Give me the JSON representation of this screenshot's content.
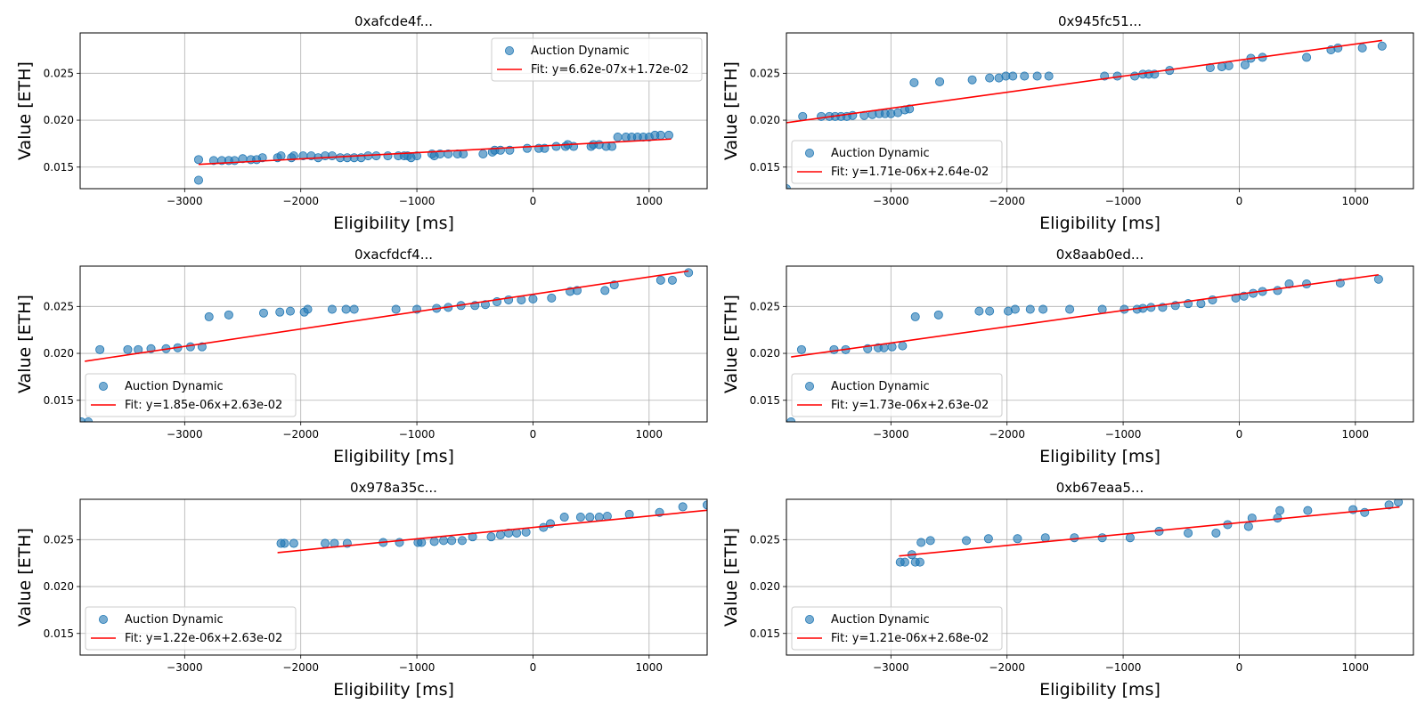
{
  "chart_data": [
    {
      "type": "scatter",
      "title": "0xafcde4f...",
      "xlabel": "Eligibility [ms]",
      "ylabel": "Value [ETH]",
      "xlim": [
        -3900,
        1500
      ],
      "ylim": [
        0.0127,
        0.0293
      ],
      "xticks": [
        -3000,
        -2000,
        -1000,
        0,
        1000
      ],
      "xtick_labels": [
        "−3000",
        "−2000",
        "−1000",
        "0",
        "1000"
      ],
      "yticks": [
        0.015,
        0.02,
        0.025
      ],
      "ytick_labels": [
        "0.015",
        "0.020",
        "0.025"
      ],
      "grid": true,
      "legend_position": "upper right",
      "legend": [
        "Auction Dynamic",
        "Fit: y=6.62e-07x+1.72e-02"
      ],
      "fit": {
        "slope": 6.62e-07,
        "intercept": 0.0172,
        "x_range": [
          -2880,
          1190
        ]
      },
      "series": [
        {
          "name": "Auction Dynamic",
          "x": [
            -2880,
            -2880,
            -2750,
            -2680,
            -2620,
            -2570,
            -2500,
            -2430,
            -2380,
            -2330,
            -2200,
            -2170,
            -2080,
            -2060,
            -1980,
            -1910,
            -1850,
            -1790,
            -1730,
            -1660,
            -1600,
            -1540,
            -1480,
            -1420,
            -1350,
            -1250,
            -1160,
            -1110,
            -1080,
            -1050,
            -1000,
            -870,
            -850,
            -800,
            -730,
            -650,
            -600,
            -430,
            -350,
            -330,
            -280,
            -200,
            -50,
            50,
            100,
            200,
            280,
            300,
            350,
            500,
            520,
            570,
            630,
            680,
            730,
            800,
            850,
            900,
            950,
            1000,
            1050,
            1100,
            1170
          ],
          "y": [
            0.0158,
            0.0136,
            0.0157,
            0.0157,
            0.0157,
            0.0157,
            0.0159,
            0.0158,
            0.0158,
            0.016,
            0.016,
            0.0162,
            0.016,
            0.0162,
            0.0162,
            0.0162,
            0.016,
            0.0162,
            0.0162,
            0.016,
            0.016,
            0.016,
            0.016,
            0.0162,
            0.0162,
            0.0162,
            0.0162,
            0.0162,
            0.0162,
            0.016,
            0.0162,
            0.0164,
            0.0162,
            0.0164,
            0.0164,
            0.0164,
            0.0164,
            0.0164,
            0.0166,
            0.0168,
            0.0168,
            0.0168,
            0.017,
            0.017,
            0.017,
            0.0172,
            0.0172,
            0.0174,
            0.0172,
            0.0172,
            0.0174,
            0.0174,
            0.0172,
            0.0172,
            0.0182,
            0.0182,
            0.0182,
            0.0182,
            0.0182,
            0.0182,
            0.0184,
            0.0184,
            0.0184
          ]
        }
      ]
    },
    {
      "type": "scatter",
      "title": "0x945fc51...",
      "xlabel": "Eligibility [ms]",
      "ylabel": "Value [ETH]",
      "xlim": [
        -3900,
        1500
      ],
      "ylim": [
        0.0127,
        0.0293
      ],
      "xticks": [
        -3000,
        -2000,
        -1000,
        0,
        1000
      ],
      "xtick_labels": [
        "−3000",
        "−2000",
        "−1000",
        "0",
        "1000"
      ],
      "yticks": [
        0.015,
        0.02,
        0.025
      ],
      "ytick_labels": [
        "0.015",
        "0.020",
        "0.025"
      ],
      "grid": true,
      "legend_position": "lower left",
      "legend": [
        "Auction Dynamic",
        "Fit: y=1.71e-06x+2.64e-02"
      ],
      "fit": {
        "slope": 1.71e-06,
        "intercept": 0.0264,
        "x_range": [
          -3900,
          1230
        ]
      },
      "series": [
        {
          "name": "Auction Dynamic",
          "x": [
            -3900,
            -3760,
            -3600,
            -3530,
            -3480,
            -3430,
            -3380,
            -3330,
            -3230,
            -3160,
            -3100,
            -3050,
            -3000,
            -2940,
            -2880,
            -2840,
            -2800,
            -2580,
            -2300,
            -2150,
            -2070,
            -2010,
            -1950,
            -1850,
            -1740,
            -1640,
            -1160,
            -1050,
            -900,
            -830,
            -780,
            -730,
            -600,
            -250,
            -150,
            -90,
            50,
            100,
            200,
            580,
            790,
            850,
            1060,
            1230
          ],
          "y": [
            0.0127,
            0.0204,
            0.0204,
            0.0204,
            0.0204,
            0.0204,
            0.0204,
            0.0205,
            0.0205,
            0.0206,
            0.0207,
            0.0207,
            0.0207,
            0.0208,
            0.0211,
            0.0212,
            0.024,
            0.0241,
            0.0243,
            0.0245,
            0.0245,
            0.0247,
            0.0247,
            0.0247,
            0.0247,
            0.0247,
            0.0247,
            0.0247,
            0.0247,
            0.0249,
            0.0249,
            0.0249,
            0.0253,
            0.0256,
            0.0257,
            0.0258,
            0.0259,
            0.0266,
            0.0267,
            0.0267,
            0.0275,
            0.0277,
            0.0277,
            0.0279
          ]
        }
      ]
    },
    {
      "type": "scatter",
      "title": "0xacfdcf4...",
      "xlabel": "Eligibility [ms]",
      "ylabel": "Value [ETH]",
      "xlim": [
        -3900,
        1500
      ],
      "ylim": [
        0.0127,
        0.0293
      ],
      "xticks": [
        -3000,
        -2000,
        -1000,
        0,
        1000
      ],
      "xtick_labels": [
        "−3000",
        "−2000",
        "−1000",
        "0",
        "1000"
      ],
      "yticks": [
        0.015,
        0.02,
        0.025
      ],
      "ytick_labels": [
        "0.015",
        "0.020",
        "0.025"
      ],
      "grid": true,
      "legend_position": "lower left",
      "legend": [
        "Auction Dynamic",
        "Fit: y=1.85e-06x+2.63e-02"
      ],
      "fit": {
        "slope": 1.85e-06,
        "intercept": 0.0263,
        "x_range": [
          -3860,
          1340
        ]
      },
      "series": [
        {
          "name": "Auction Dynamic",
          "x": [
            -3890,
            -3830,
            -3730,
            -3490,
            -3400,
            -3290,
            -3160,
            -3060,
            -2950,
            -2850,
            -2790,
            -2620,
            -2320,
            -2180,
            -2090,
            -1970,
            -1940,
            -1730,
            -1610,
            -1540,
            -1180,
            -1000,
            -830,
            -730,
            -620,
            -500,
            -410,
            -310,
            -210,
            -100,
            0,
            160,
            320,
            380,
            620,
            700,
            1100,
            1200,
            1340
          ],
          "y": [
            0.0127,
            0.0127,
            0.0204,
            0.0204,
            0.0204,
            0.0205,
            0.0205,
            0.0206,
            0.0207,
            0.0207,
            0.0239,
            0.0241,
            0.0243,
            0.0244,
            0.0245,
            0.0244,
            0.0247,
            0.0247,
            0.0247,
            0.0247,
            0.0247,
            0.0247,
            0.0248,
            0.0249,
            0.0251,
            0.0251,
            0.0252,
            0.0255,
            0.0257,
            0.0257,
            0.0258,
            0.0259,
            0.0266,
            0.0267,
            0.0267,
            0.0273,
            0.0278,
            0.0278,
            0.0286
          ]
        }
      ]
    },
    {
      "type": "scatter",
      "title": "0x8aab0ed...",
      "xlabel": "Eligibility [ms]",
      "ylabel": "Value [ETH]",
      "xlim": [
        -3900,
        1500
      ],
      "ylim": [
        0.0127,
        0.0293
      ],
      "xticks": [
        -3000,
        -2000,
        -1000,
        0,
        1000
      ],
      "xtick_labels": [
        "−3000",
        "−2000",
        "−1000",
        "0",
        "1000"
      ],
      "yticks": [
        0.015,
        0.02,
        0.025
      ],
      "ytick_labels": [
        "0.015",
        "0.020",
        "0.025"
      ],
      "grid": true,
      "legend_position": "lower left",
      "legend": [
        "Auction Dynamic",
        "Fit: y=1.73e-06x+2.63e-02"
      ],
      "fit": {
        "slope": 1.73e-06,
        "intercept": 0.0263,
        "x_range": [
          -3860,
          1200
        ]
      },
      "series": [
        {
          "name": "Auction Dynamic",
          "x": [
            -3860,
            -3770,
            -3490,
            -3390,
            -3200,
            -3110,
            -3060,
            -2990,
            -2900,
            -2790,
            -2590,
            -2240,
            -2150,
            -1990,
            -1930,
            -1800,
            -1690,
            -1460,
            -1180,
            -990,
            -880,
            -830,
            -760,
            -660,
            -550,
            -440,
            -330,
            -230,
            -30,
            40,
            120,
            200,
            330,
            430,
            580,
            870,
            1200
          ],
          "y": [
            0.0127,
            0.0204,
            0.0204,
            0.0204,
            0.0205,
            0.0206,
            0.0206,
            0.0207,
            0.0208,
            0.0239,
            0.0241,
            0.0245,
            0.0245,
            0.0245,
            0.0247,
            0.0247,
            0.0247,
            0.0247,
            0.0247,
            0.0247,
            0.0247,
            0.0248,
            0.0249,
            0.0249,
            0.0251,
            0.0253,
            0.0253,
            0.0257,
            0.0259,
            0.0261,
            0.0264,
            0.0266,
            0.0267,
            0.0274,
            0.0274,
            0.0275,
            0.0279
          ]
        }
      ]
    },
    {
      "type": "scatter",
      "title": "0x978a35c...",
      "xlabel": "Eligibility [ms]",
      "ylabel": "Value [ETH]",
      "xlim": [
        -3900,
        1500
      ],
      "ylim": [
        0.0127,
        0.0293
      ],
      "xticks": [
        -3000,
        -2000,
        -1000,
        0,
        1000
      ],
      "xtick_labels": [
        "−3000",
        "−2000",
        "−1000",
        "0",
        "1000"
      ],
      "yticks": [
        0.015,
        0.02,
        0.025
      ],
      "ytick_labels": [
        "0.015",
        "0.020",
        "0.025"
      ],
      "grid": true,
      "legend_position": "lower left",
      "legend": [
        "Auction Dynamic",
        "Fit: y=1.22e-06x+2.63e-02"
      ],
      "fit": {
        "slope": 1.22e-06,
        "intercept": 0.0263,
        "x_range": [
          -2200,
          1500
        ]
      },
      "series": [
        {
          "name": "Auction Dynamic",
          "x": [
            -2170,
            -2140,
            -2060,
            -1790,
            -1710,
            -1600,
            -1290,
            -1150,
            -990,
            -960,
            -850,
            -770,
            -700,
            -610,
            -520,
            -360,
            -280,
            -210,
            -140,
            -60,
            90,
            150,
            270,
            410,
            490,
            570,
            640,
            830,
            1090,
            1290,
            1500
          ],
          "y": [
            0.0246,
            0.0246,
            0.0246,
            0.0246,
            0.0246,
            0.0246,
            0.0247,
            0.0247,
            0.0247,
            0.0247,
            0.0248,
            0.0249,
            0.0249,
            0.0249,
            0.0253,
            0.0253,
            0.0255,
            0.0257,
            0.0257,
            0.0258,
            0.0263,
            0.0267,
            0.0274,
            0.0274,
            0.0274,
            0.0274,
            0.0275,
            0.0277,
            0.0279,
            0.0285,
            0.0287
          ]
        }
      ]
    },
    {
      "type": "scatter",
      "title": "0xb67eaa5...",
      "xlabel": "Eligibility [ms]",
      "ylabel": "Value [ETH]",
      "xlim": [
        -3900,
        1500
      ],
      "ylim": [
        0.0127,
        0.0293
      ],
      "xticks": [
        -3000,
        -2000,
        -1000,
        0,
        1000
      ],
      "xtick_labels": [
        "−3000",
        "−2000",
        "−1000",
        "0",
        "1000"
      ],
      "yticks": [
        0.015,
        0.02,
        0.025
      ],
      "ytick_labels": [
        "0.015",
        "0.020",
        "0.025"
      ],
      "grid": true,
      "legend_position": "lower left",
      "legend": [
        "Auction Dynamic",
        "Fit: y=1.21e-06x+2.68e-02"
      ],
      "fit": {
        "slope": 1.21e-06,
        "intercept": 0.0268,
        "x_range": [
          -2930,
          1380
        ]
      },
      "series": [
        {
          "name": "Auction Dynamic",
          "x": [
            -2920,
            -2880,
            -2820,
            -2790,
            -2750,
            -2740,
            -2660,
            -2350,
            -2160,
            -1910,
            -1670,
            -1420,
            -1180,
            -940,
            -690,
            -440,
            -200,
            -100,
            80,
            110,
            330,
            350,
            590,
            980,
            1080,
            1290,
            1370
          ],
          "y": [
            0.0226,
            0.0226,
            0.0234,
            0.0226,
            0.0226,
            0.0247,
            0.0249,
            0.0249,
            0.0251,
            0.0251,
            0.0252,
            0.0252,
            0.0252,
            0.0252,
            0.0259,
            0.0257,
            0.0257,
            0.0266,
            0.0264,
            0.0273,
            0.0273,
            0.0281,
            0.0281,
            0.0282,
            0.0279,
            0.0287,
            0.029
          ]
        }
      ]
    }
  ]
}
